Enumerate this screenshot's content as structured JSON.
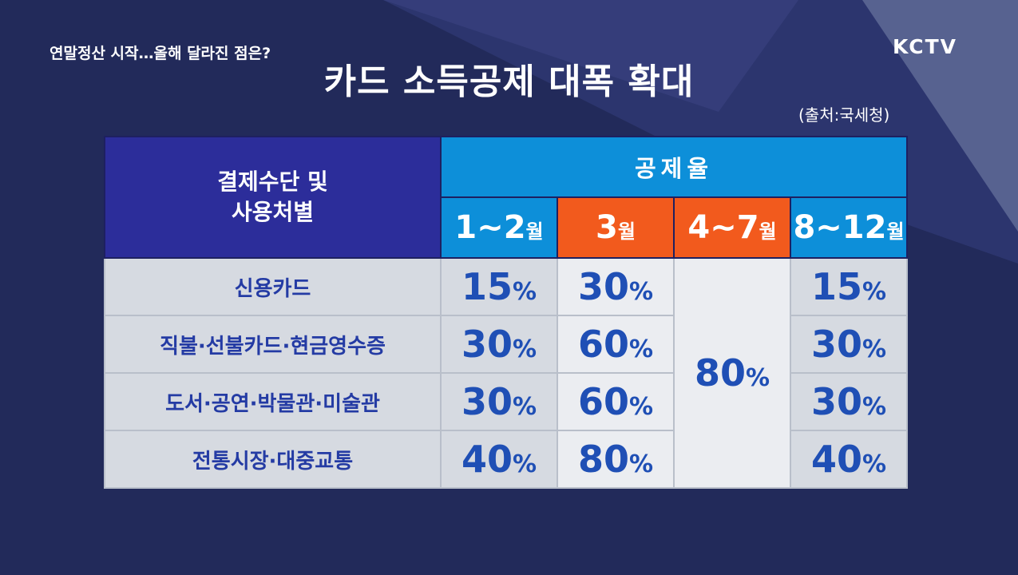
{
  "ticker": "연말정산 시작…올해 달라진 점은?",
  "logo": "KCTV",
  "title": "카드 소득공제 대폭 확대",
  "source": "(출처:국세청)",
  "table": {
    "row_header": "결제수단 및\n사용처별",
    "rate_header": "공제율",
    "percent_sign": "%",
    "months": [
      {
        "num": "1~2",
        "unit": "월",
        "color": "#0d8fd9"
      },
      {
        "num": "3",
        "unit": "월",
        "color": "#f25a1d"
      },
      {
        "num": "4~7",
        "unit": "월",
        "color": "#f25a1d"
      },
      {
        "num": "8~12",
        "unit": "월",
        "color": "#0d8fd9"
      }
    ],
    "rows": [
      {
        "label": "신용카드",
        "jan_feb": "15",
        "mar": "30",
        "dec": "15"
      },
      {
        "label": "직불·선불카드·현금영수증",
        "jan_feb": "30",
        "mar": "60",
        "dec": "30"
      },
      {
        "label": "도서·공연·박물관·미술관",
        "jan_feb": "30",
        "mar": "60",
        "dec": "30"
      },
      {
        "label": "전통시장·대중교통",
        "jan_feb": "40",
        "mar": "80",
        "dec": "40"
      }
    ],
    "apr_jul_all": "80"
  }
}
